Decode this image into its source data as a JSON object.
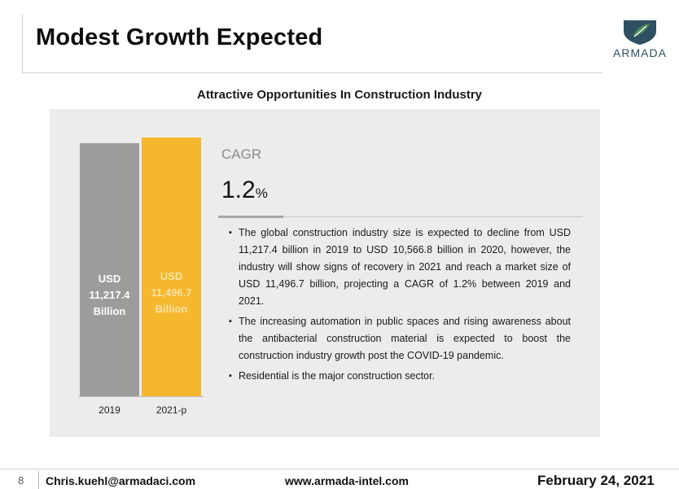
{
  "slide": {
    "title": "Modest Growth Expected",
    "brand": "ARMADA",
    "section_heading": "Attractive Opportunities In Construction Industry"
  },
  "colors": {
    "bar_2019": "#9d9c9b",
    "bar_2021": "#f5b72d",
    "panel": "#ececec",
    "logo_shield": "#2f5061",
    "logo_leaf": "#4d8a5a"
  },
  "chart_data": {
    "type": "bar",
    "categories": [
      "2019",
      "2021-p"
    ],
    "values": [
      11217.4,
      11496.7
    ],
    "bar_labels": [
      [
        "USD",
        "11,217.4",
        "Billion"
      ],
      [
        "USD",
        "11,496.7",
        "Billion"
      ]
    ]
  },
  "cagr": {
    "label": "CAGR",
    "value": "1.2",
    "unit": "%"
  },
  "bullets": [
    "The global construction industry size is expected to decline from USD 11,217.4 billion in 2019 to USD 10,566.8 billion in 2020, however, the industry will show signs of recovery in 2021 and reach a market size of USD 11,496.7 billion, projecting a CAGR of 1.2% between 2019 and 2021.",
    "The increasing automation in public spaces and rising awareness about the antibacterial construction material is expected to boost the construction industry growth post the COVID-19 pandemic.",
    "Residential is the major construction sector."
  ],
  "footer": {
    "page": "8",
    "email": "Chris.kuehl@armadaci.com",
    "website": "www.armada-intel.com",
    "date": "February 24, 2021"
  },
  "icons": {
    "logo": "armada-shield-logo-icon"
  }
}
